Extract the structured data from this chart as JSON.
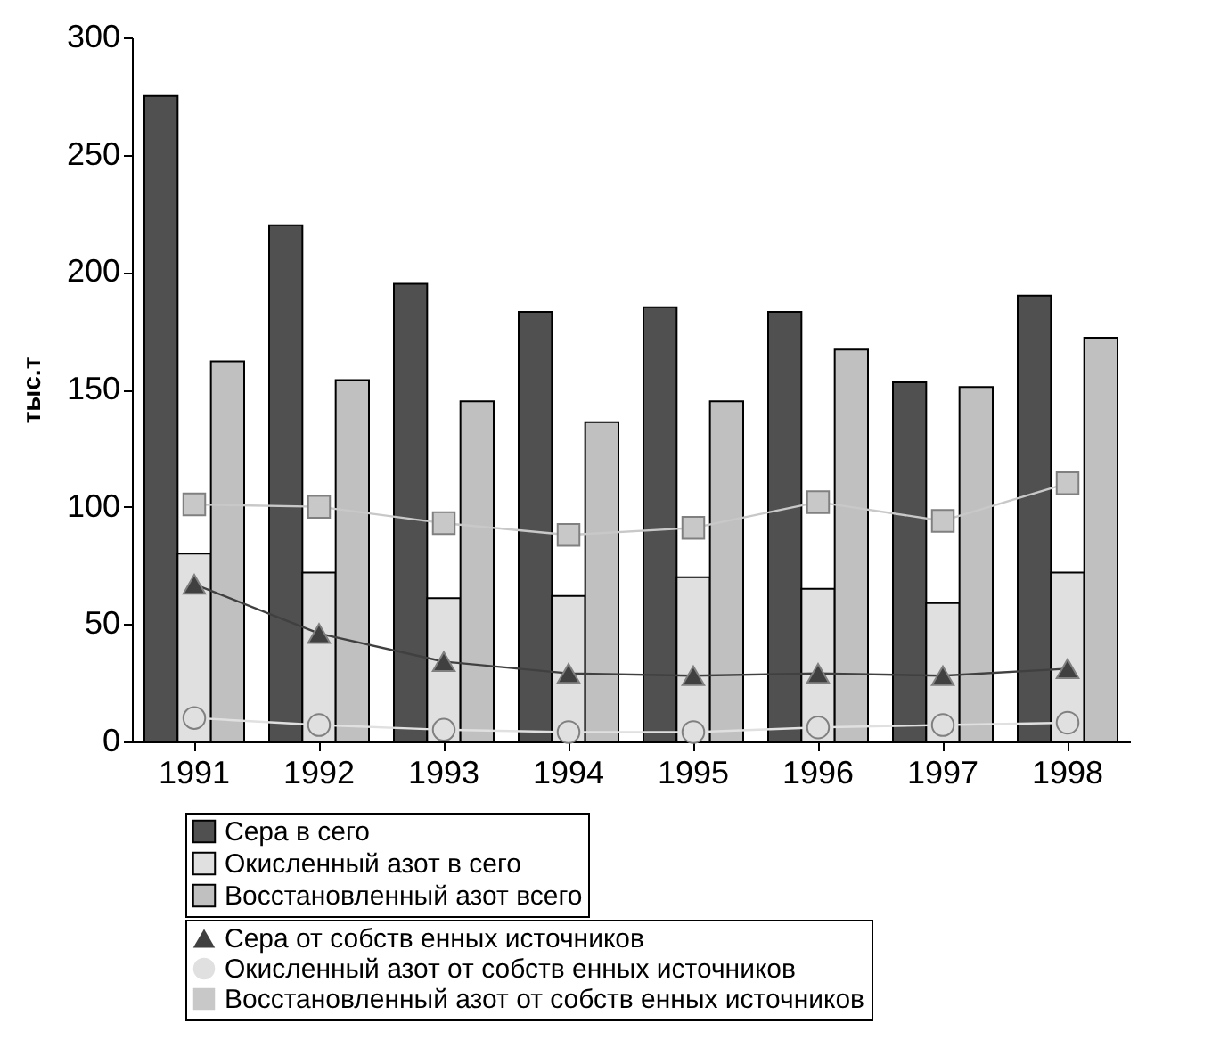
{
  "chart_data": {
    "type": "bar",
    "ylabel": "тыс.т",
    "categories": [
      "1991",
      "1992",
      "1993",
      "1994",
      "1995",
      "1996",
      "1997",
      "1998"
    ],
    "ylim": [
      0,
      300
    ],
    "yticks": [
      0,
      50,
      100,
      150,
      200,
      250,
      300
    ],
    "grid": false,
    "legend": "bottom",
    "series": [
      {
        "name": "Сера в сего",
        "color": "#505050",
        "values": [
          275,
          220,
          195,
          183,
          185,
          183,
          153,
          190
        ]
      },
      {
        "name": "Окисленный азот в сего",
        "color": "#e0e0e0",
        "values": [
          80,
          72,
          61,
          62,
          70,
          65,
          59,
          72
        ]
      },
      {
        "name": "Восстановленный азот всего",
        "color": "#c0c0c0",
        "values": [
          162,
          154,
          145,
          136,
          145,
          167,
          151,
          172
        ]
      },
      {
        "name": "Сера от собств енных источников",
        "type": "line",
        "marker": "triangle",
        "color": "#404040",
        "values": [
          67,
          46,
          34,
          29,
          28,
          29,
          28,
          31
        ]
      },
      {
        "name": "Окисленный азот от собств енных источников",
        "type": "line",
        "marker": "circle",
        "color": "#e0e0e0",
        "values": [
          10,
          7,
          5,
          4,
          4,
          6,
          7,
          8
        ]
      },
      {
        "name": "Восстановленный азот от собств енных источников",
        "type": "line",
        "marker": "square",
        "color": "#c8c8c8",
        "values": [
          101,
          100,
          93,
          88,
          91,
          102,
          94,
          110
        ]
      }
    ]
  }
}
